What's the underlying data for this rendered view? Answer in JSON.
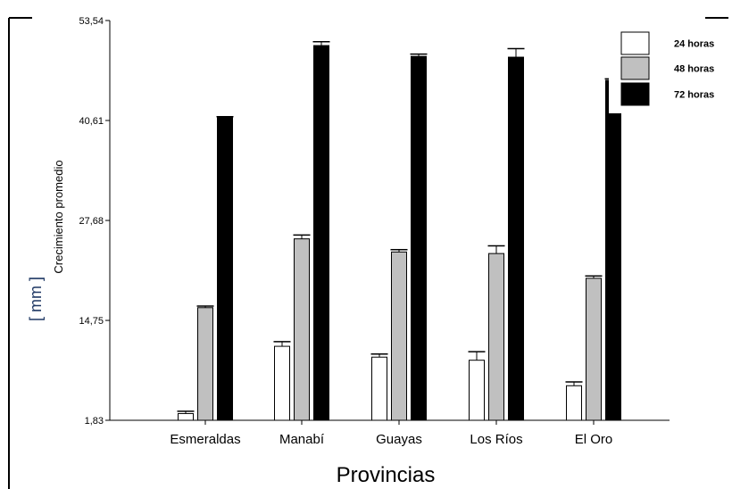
{
  "chart_data": {
    "type": "bar",
    "title": "",
    "ylabel": "Crecimiento promedio",
    "yunit_label": "[ mm ]",
    "xlabel": "Provincias",
    "ylim": [
      1.83,
      53.54
    ],
    "yticks": [
      "1,83",
      "14,75",
      "27,68",
      "40,61",
      "53,54"
    ],
    "ytick_values": [
      1.83,
      14.75,
      27.68,
      40.61,
      53.54
    ],
    "categories": [
      "Esmeraldas",
      "Manabí",
      "Guayas",
      "Los Ríos",
      "El Oro"
    ],
    "legend_position": "top-right",
    "error_bars": true,
    "series": [
      {
        "name": "24 horas",
        "color": "#ffffff",
        "values": [
          2.7,
          11.4,
          10.0,
          9.6,
          6.3
        ],
        "errors": [
          0.3,
          0.6,
          0.4,
          1.1,
          0.5
        ]
      },
      {
        "name": "48 horas",
        "color": "#c0c0c0",
        "values": [
          16.4,
          25.3,
          23.6,
          23.4,
          20.2
        ],
        "errors": [
          0.2,
          0.5,
          0.3,
          1.0,
          0.3
        ]
      },
      {
        "name": "72 horas",
        "color": "#000000",
        "values": [
          41.0,
          50.3,
          48.9,
          48.8,
          45.8
        ],
        "errors": [
          0.1,
          0.5,
          0.3,
          1.1,
          0.2
        ]
      }
    ]
  }
}
